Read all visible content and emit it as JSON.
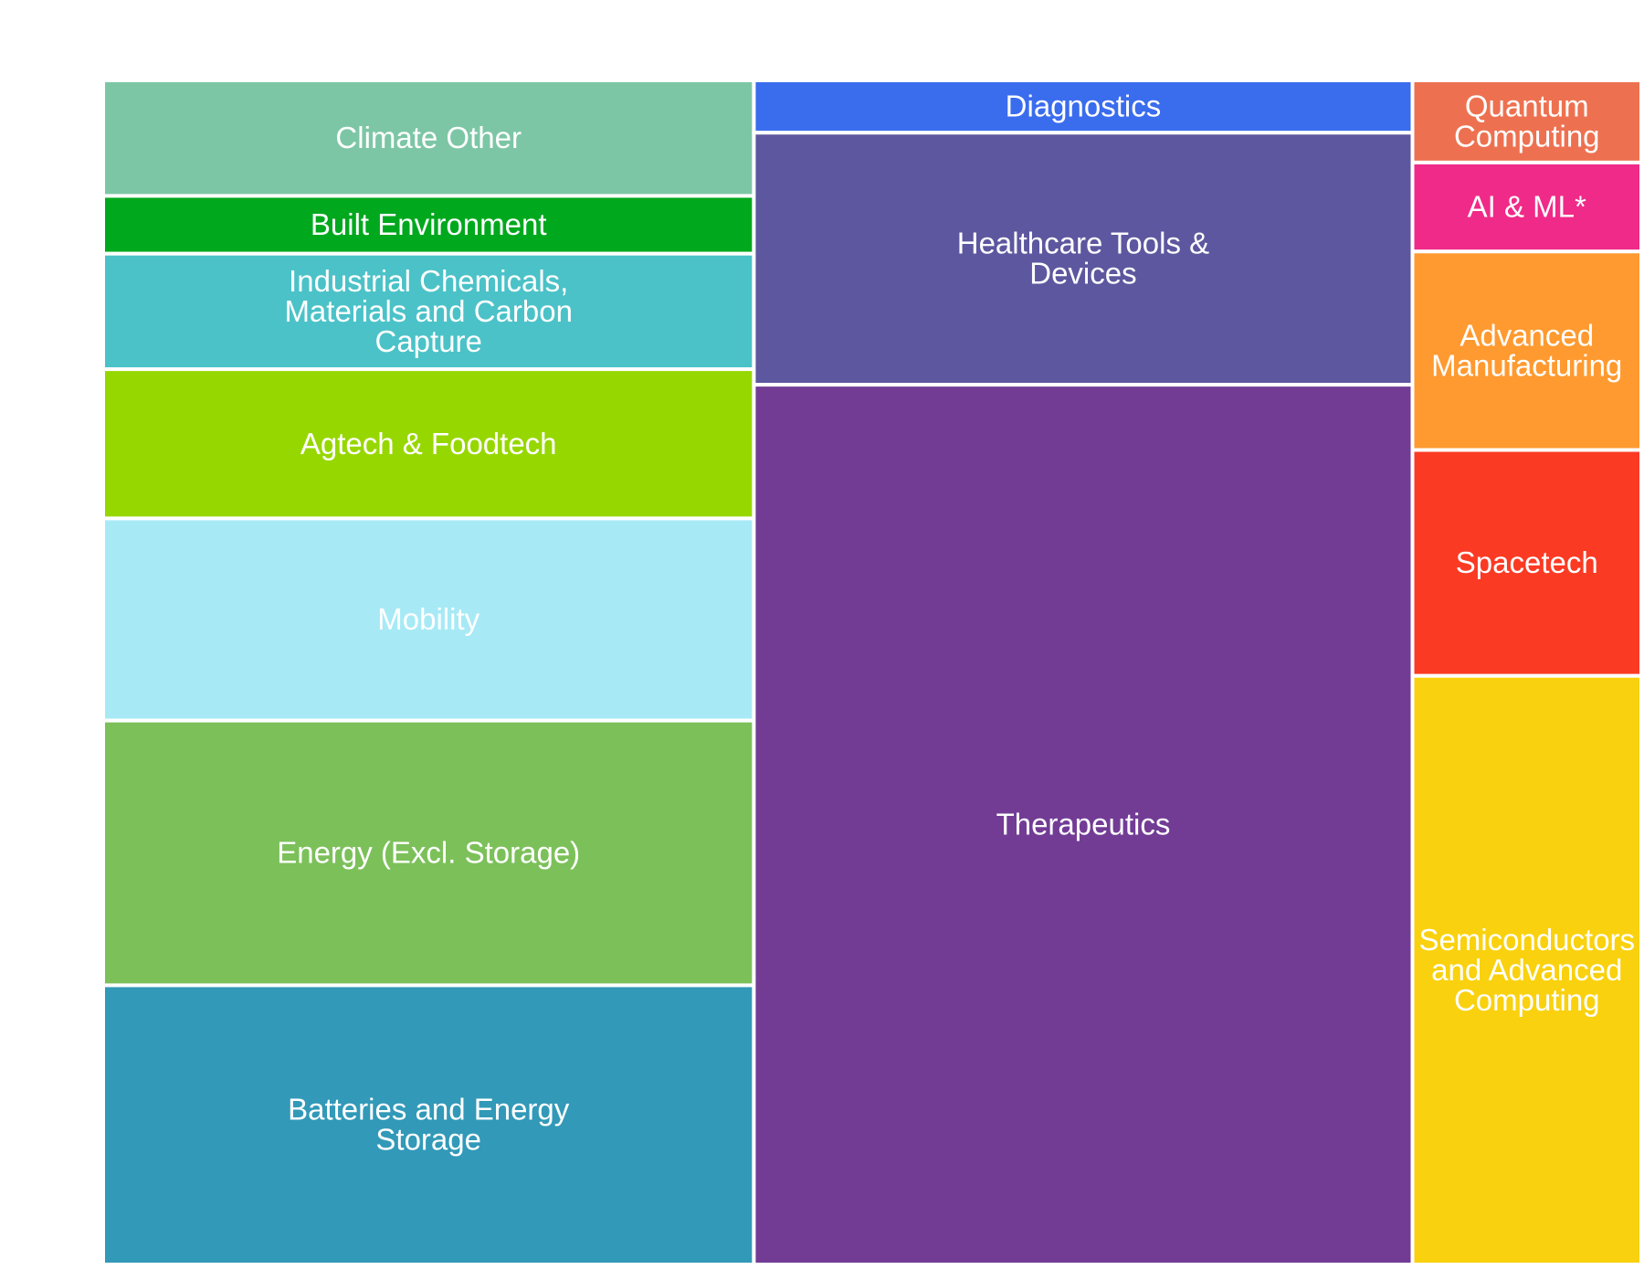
{
  "chart_data": {
    "type": "treemap",
    "title": "",
    "label_color": "#ffffff",
    "groups": [
      {
        "tiles": [
          {
            "label": [
              "Climate Other"
            ],
            "value": 4.8,
            "color": "#7dc6a5"
          },
          {
            "label": [
              "Built Environment"
            ],
            "value": 2.4,
            "color": "#00a81e"
          },
          {
            "label": [
              "Industrial Chemicals,",
              "Materials and Carbon",
              "Capture"
            ],
            "value": 4.8,
            "color": "#4bc2c8"
          },
          {
            "label": [
              "Agtech & Foodtech"
            ],
            "value": 6.2,
            "color": "#97d700"
          },
          {
            "label": [
              "Mobility"
            ],
            "value": 8.4,
            "color": "#a7eaf6"
          },
          {
            "label": [
              "Energy (Excl. Storage)"
            ],
            "value": 11.0,
            "color": "#7cc05a"
          },
          {
            "label": [
              "Batteries and Energy",
              "Storage"
            ],
            "value": 11.6,
            "color": "#3299b8"
          }
        ]
      },
      {
        "tiles": [
          {
            "label": [
              "Diagnostics"
            ],
            "value": 2.2,
            "color": "#3a6cee"
          },
          {
            "label": [
              "Healthcare Tools &",
              "Devices"
            ],
            "value": 10.6,
            "color": "#5d579f"
          },
          {
            "label": [
              "Therapeutics"
            ],
            "value": 37.0,
            "color": "#723c95"
          }
        ]
      },
      {
        "tiles": [
          {
            "label": [
              "Quantum",
              "Computing"
            ],
            "value": 1.2,
            "color": "#ed7150"
          },
          {
            "label": [
              "AI & ML*"
            ],
            "value": 1.3,
            "color": "#f02a88"
          },
          {
            "label": [
              "Advanced",
              "Manufacturing"
            ],
            "value": 2.9,
            "color": "#ff9a30"
          },
          {
            "label": [
              "Spacetech"
            ],
            "value": 3.3,
            "color": "#fb3a24"
          },
          {
            "label": [
              "Semiconductors",
              "and Advanced",
              "Computing"
            ],
            "value": 8.6,
            "color": "#f9d10e"
          }
        ]
      }
    ]
  }
}
